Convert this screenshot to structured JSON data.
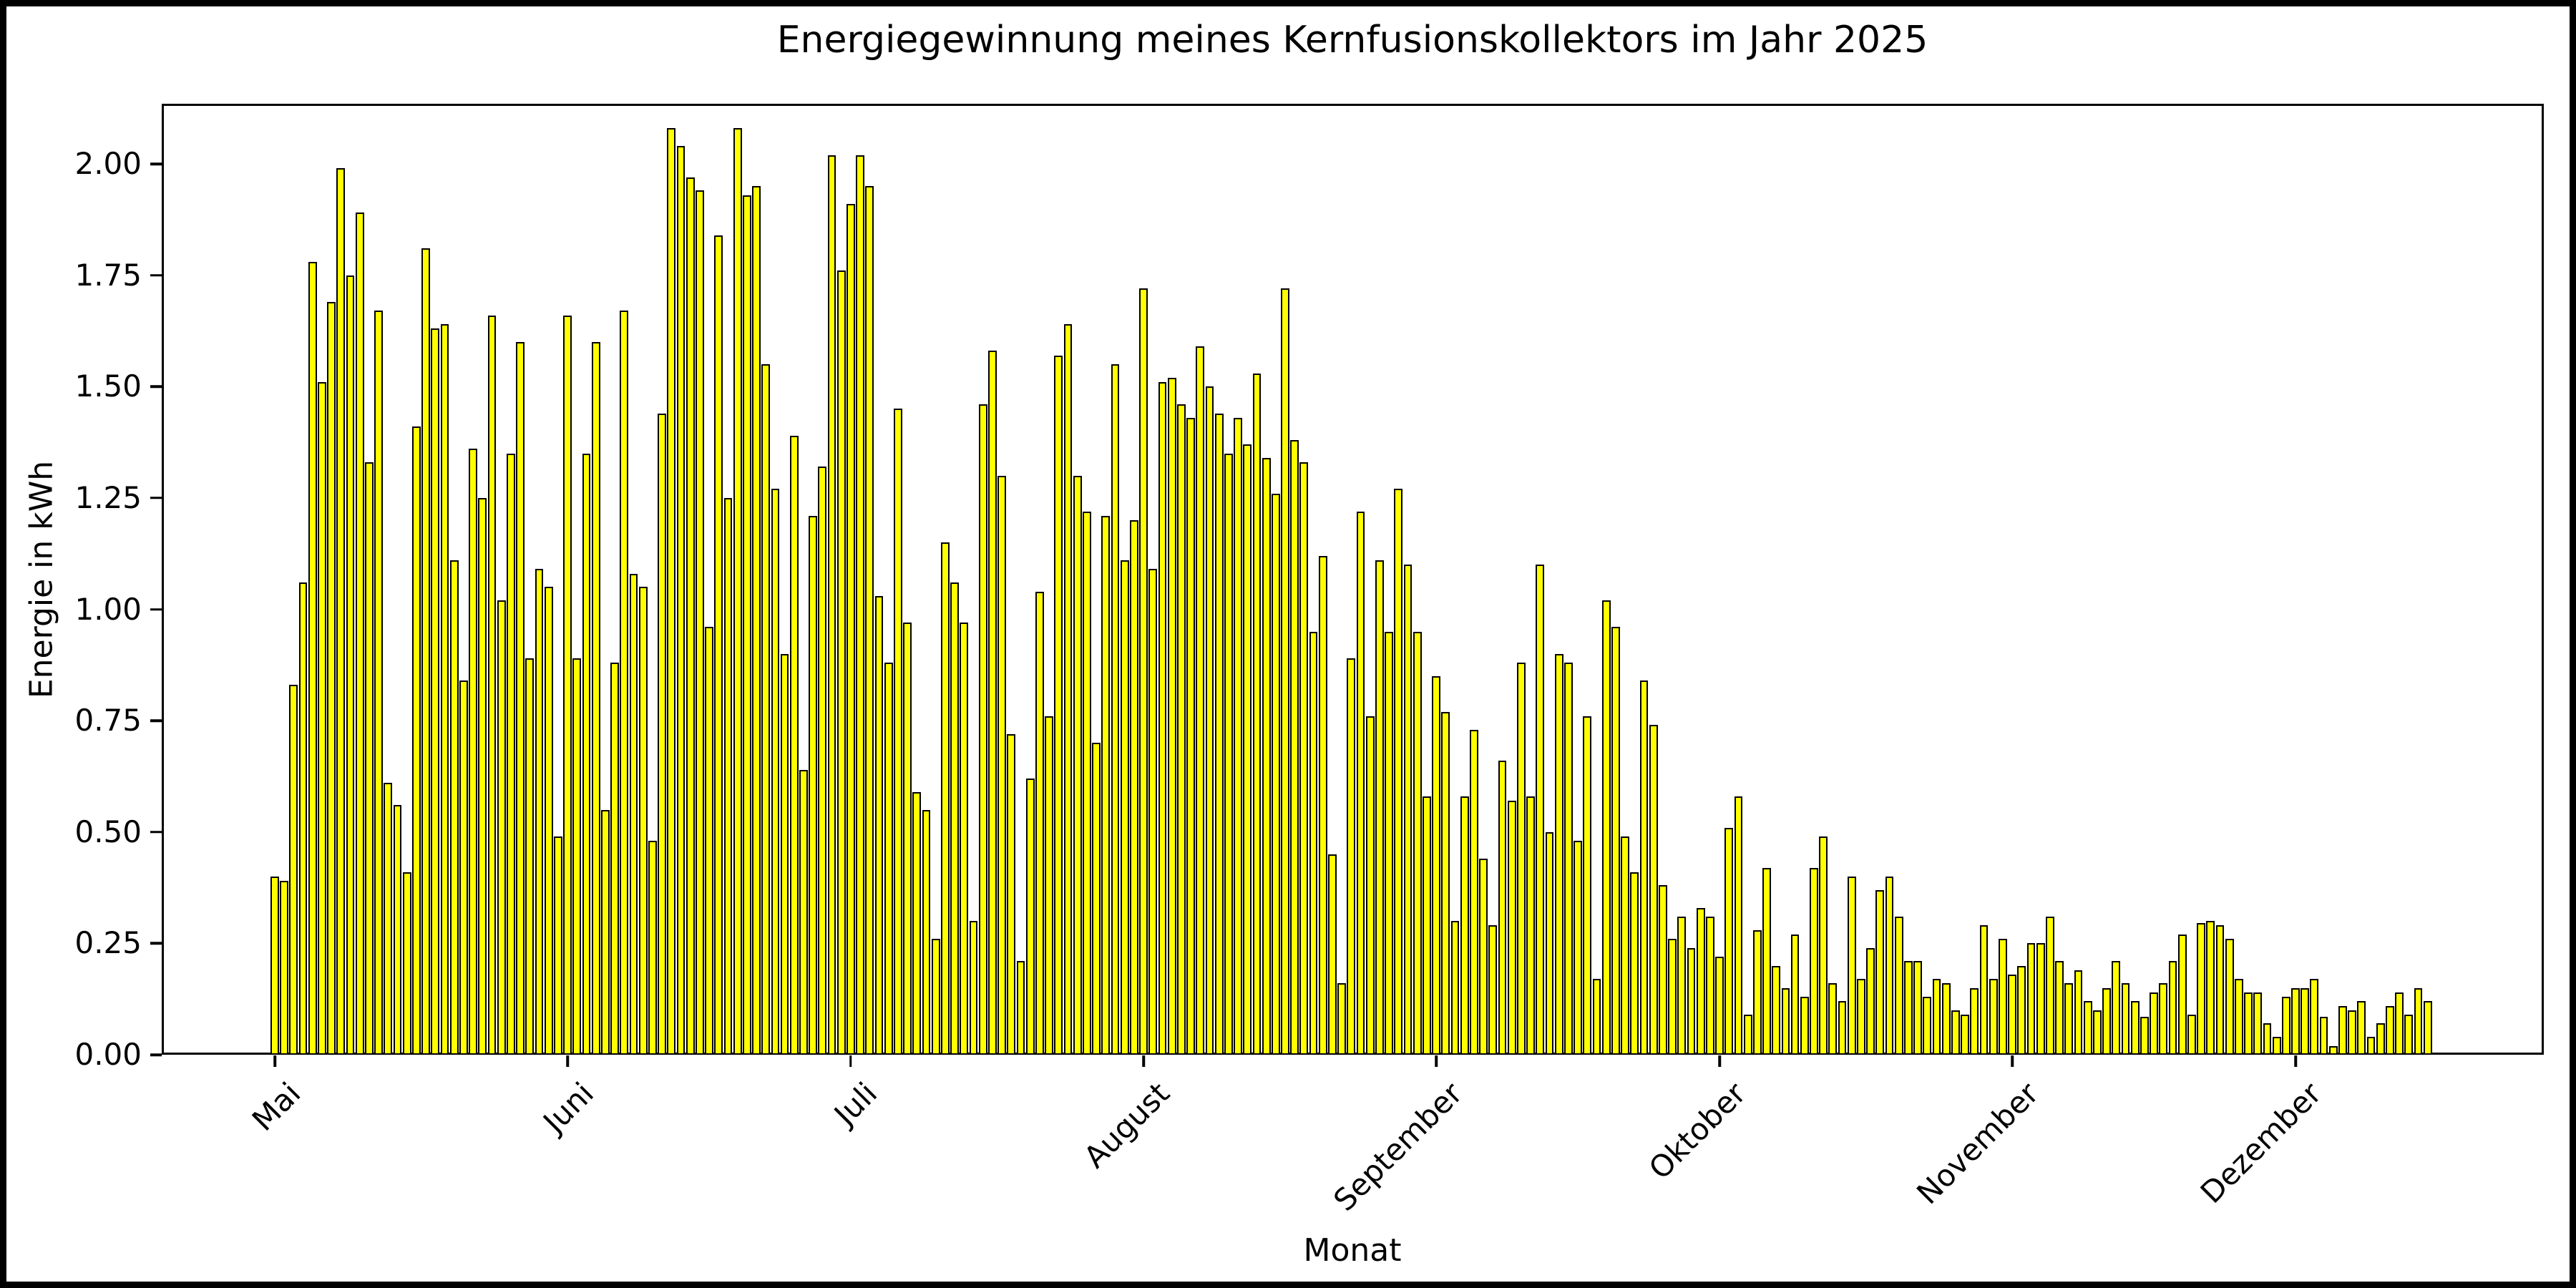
{
  "title": "Energiegewinnung meines Kernfusionskollektors im Jahr 2025",
  "xlabel": "Monat",
  "ylabel": "Energie in kWh",
  "y_tick_labels": [
    "0.00",
    "0.25",
    "0.50",
    "0.75",
    "1.00",
    "1.25",
    "1.50",
    "1.75",
    "2.00"
  ],
  "x_tick_labels": [
    "Mai",
    "Juni",
    "Juli",
    "August",
    "September",
    "Oktober",
    "November",
    "Dezember"
  ],
  "colors": {
    "bar_fill": "#FFFF00",
    "bar_edge": "#000000",
    "axes": "#000000",
    "background": "#FFFFFF",
    "figure_frame": "#000000"
  },
  "chart_data": {
    "type": "bar",
    "title": "Energiegewinnung meines Kernfusionskollektors im Jahr 2025",
    "xlabel": "Monat",
    "ylabel": "Energie in kWh",
    "unit": "kWh",
    "x_resolution": "daily",
    "ylim": [
      0,
      2.135
    ],
    "y_ticks": [
      0.0,
      0.25,
      0.5,
      0.75,
      1.0,
      1.25,
      1.5,
      1.75,
      2.0
    ],
    "grid": false,
    "legend": "none",
    "bar_width_fraction": 0.8,
    "months": [
      {
        "label": "Mai",
        "days": 31,
        "values": [
          0.4,
          0.39,
          0.83,
          1.06,
          1.78,
          1.51,
          1.69,
          1.99,
          1.75,
          1.89,
          1.33,
          1.67,
          0.61,
          0.56,
          0.41,
          1.41,
          1.81,
          1.63,
          1.64,
          1.11,
          0.84,
          1.36,
          1.25,
          1.66,
          1.02,
          1.35,
          1.6,
          0.89,
          1.09,
          1.05,
          0.49
        ]
      },
      {
        "label": "Juni",
        "days": 30,
        "values": [
          1.66,
          0.89,
          1.35,
          1.6,
          0.55,
          0.88,
          1.67,
          1.08,
          1.05,
          0.48,
          1.44,
          2.08,
          2.04,
          1.97,
          1.94,
          0.96,
          1.84,
          1.25,
          2.08,
          1.93,
          1.95,
          1.55,
          1.27,
          0.9,
          1.39,
          0.64,
          1.21,
          1.32,
          2.02,
          1.76
        ]
      },
      {
        "label": "Juli",
        "days": 31,
        "values": [
          1.91,
          2.02,
          1.95,
          1.03,
          0.88,
          1.45,
          0.97,
          0.59,
          0.55,
          0.26,
          1.15,
          1.06,
          0.97,
          0.3,
          1.46,
          1.58,
          1.3,
          0.72,
          0.21,
          0.62,
          1.04,
          0.76,
          1.57,
          1.64,
          1.3,
          1.22,
          0.7,
          1.21,
          1.55,
          1.11,
          1.2
        ]
      },
      {
        "label": "August",
        "days": 31,
        "values": [
          1.72,
          1.09,
          1.51,
          1.52,
          1.46,
          1.43,
          1.59,
          1.5,
          1.44,
          1.35,
          1.43,
          1.37,
          1.53,
          1.34,
          1.26,
          1.72,
          1.38,
          1.33,
          0.95,
          1.12,
          0.45,
          0.16,
          0.89,
          1.22,
          0.76,
          1.11,
          0.95,
          1.27,
          1.1,
          0.95,
          0.58
        ]
      },
      {
        "label": "September",
        "days": 30,
        "values": [
          0.85,
          0.77,
          0.3,
          0.58,
          0.73,
          0.44,
          0.29,
          0.66,
          0.57,
          0.88,
          0.58,
          1.1,
          0.5,
          0.9,
          0.88,
          0.48,
          0.76,
          0.17,
          1.02,
          0.96,
          0.49,
          0.41,
          0.84,
          0.74,
          0.38,
          0.26,
          0.31,
          0.24,
          0.33,
          0.31
        ]
      },
      {
        "label": "Oktober",
        "days": 31,
        "values": [
          0.22,
          0.51,
          0.58,
          0.09,
          0.28,
          0.42,
          0.2,
          0.15,
          0.27,
          0.13,
          0.42,
          0.49,
          0.16,
          0.12,
          0.4,
          0.17,
          0.24,
          0.37,
          0.4,
          0.31,
          0.21,
          0.21,
          0.13,
          0.17,
          0.16,
          0.1,
          0.09,
          0.15,
          0.29,
          0.17,
          0.26
        ]
      },
      {
        "label": "November",
        "days": 30,
        "values": [
          0.18,
          0.2,
          0.25,
          0.25,
          0.31,
          0.21,
          0.16,
          0.19,
          0.12,
          0.1,
          0.15,
          0.21,
          0.16,
          0.12,
          0.085,
          0.14,
          0.16,
          0.21,
          0.27,
          0.09,
          0.295,
          0.3,
          0.29,
          0.26,
          0.17,
          0.14,
          0.14,
          0.07,
          0.04,
          0.13
        ]
      },
      {
        "label": "Dezember",
        "days": 15,
        "values": [
          0.15,
          0.15,
          0.17,
          0.085,
          0.02,
          0.11,
          0.1,
          0.12,
          0.04,
          0.07,
          0.11,
          0.14,
          0.09,
          0.15,
          0.12
        ]
      }
    ]
  }
}
